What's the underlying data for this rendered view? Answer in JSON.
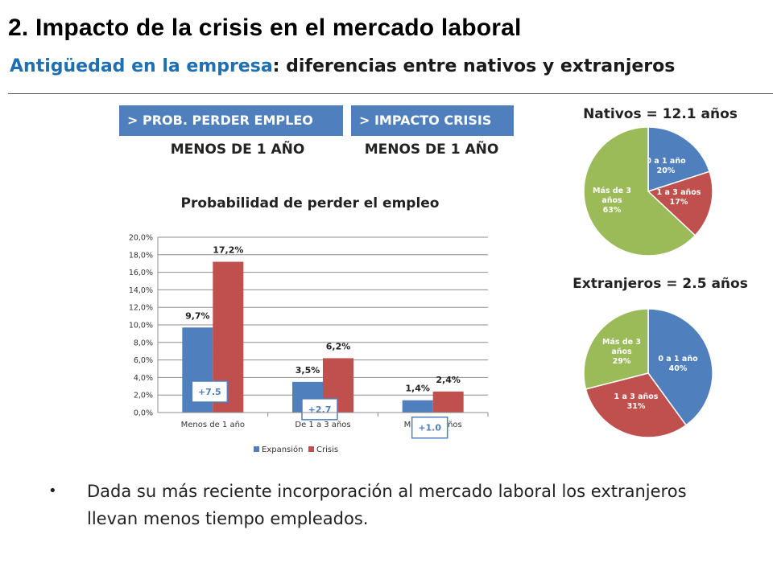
{
  "header": {
    "title": "2. Impacto de la crisis en el mercado laboral",
    "subtitle_accent": "Antigüedad en la empresa",
    "subtitle_rest": ": diferencias entre nativos y extranjeros"
  },
  "badges": [
    {
      "label": "> PROB. PERDER EMPLEO",
      "sub": "MENOS DE 1 AÑO"
    },
    {
      "label": "> IMPACTO CRISIS",
      "sub": "MENOS DE 1 AÑO"
    }
  ],
  "colors": {
    "blue": "#4f80bd",
    "red": "#c0504d",
    "green": "#9bbb59"
  },
  "chart_data": [
    {
      "type": "bar",
      "title": "Probabilidad de perder el empleo",
      "categories": [
        "Menos de 1 año",
        "De 1 a 3 años",
        "Más de 3 años"
      ],
      "series": [
        {
          "name": "Expansión",
          "values": [
            9.7,
            3.5,
            1.4
          ],
          "labels": [
            "9,7%",
            "3,5%",
            "1,4%"
          ]
        },
        {
          "name": "Crisis",
          "values": [
            17.2,
            6.2,
            2.4
          ],
          "labels": [
            "17,2%",
            "6,2%",
            "2,4%"
          ]
        }
      ],
      "annotations": [
        "+7.5",
        "+2.7",
        "+1.0"
      ],
      "ylim": [
        0,
        20
      ],
      "yticks": [
        "0,0%",
        "2,0%",
        "4,0%",
        "6,0%",
        "8,0%",
        "10,0%",
        "12,0%",
        "14,0%",
        "16,0%",
        "18,0%",
        "20,0%"
      ],
      "grid": true,
      "legend": "bottom"
    },
    {
      "type": "pie",
      "title": "Nativos = 12.1 años",
      "slices": [
        {
          "label": "0 a 1 año",
          "pct_label": "20%",
          "value": 20,
          "color": "#4f80bd"
        },
        {
          "label": "1 a 3 años",
          "pct_label": "17%",
          "value": 17,
          "color": "#c0504d"
        },
        {
          "label": "Más de 3 años",
          "pct_label": "63%",
          "value": 63,
          "color": "#9bbb59"
        }
      ]
    },
    {
      "type": "pie",
      "title": "Extranjeros = 2.5 años",
      "slices": [
        {
          "label": "0 a 1 año",
          "pct_label": "40%",
          "value": 40,
          "color": "#4f80bd"
        },
        {
          "label": "1 a 3 años",
          "pct_label": "31%",
          "value": 31,
          "color": "#c0504d"
        },
        {
          "label": "Más de 3 años",
          "pct_label": "29%",
          "value": 29,
          "color": "#9bbb59"
        }
      ]
    }
  ],
  "bullet": {
    "text": "Dada su más reciente incorporación al mercado laboral los extranjeros llevan menos tiempo empleados."
  }
}
